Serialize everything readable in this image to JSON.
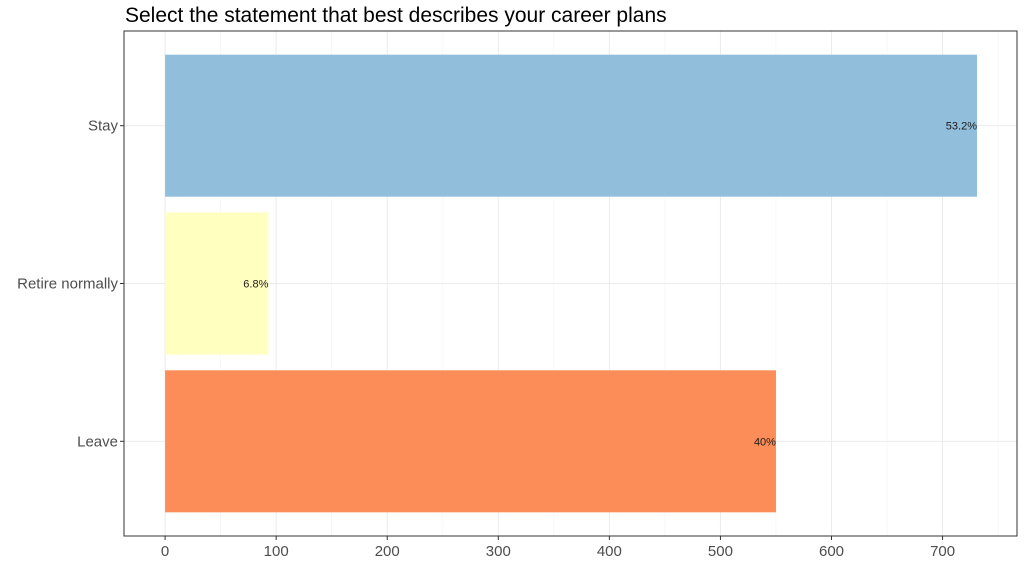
{
  "chart_data": {
    "type": "bar",
    "orientation": "horizontal",
    "title": "Select the statement that best describes your career plans",
    "xlabel": "",
    "ylabel": "",
    "categories": [
      "Leave",
      "Retire normally",
      "Stay"
    ],
    "values": [
      550,
      93,
      731
    ],
    "labels": [
      "40%",
      "6.8%",
      "53.2%"
    ],
    "colors": [
      "#fc8d59",
      "#ffffbf",
      "#91bfdb"
    ],
    "xlim": [
      -37,
      767
    ],
    "xticks": [
      0,
      100,
      200,
      300,
      400,
      500,
      600,
      700
    ],
    "grid": true,
    "legend": "none"
  }
}
